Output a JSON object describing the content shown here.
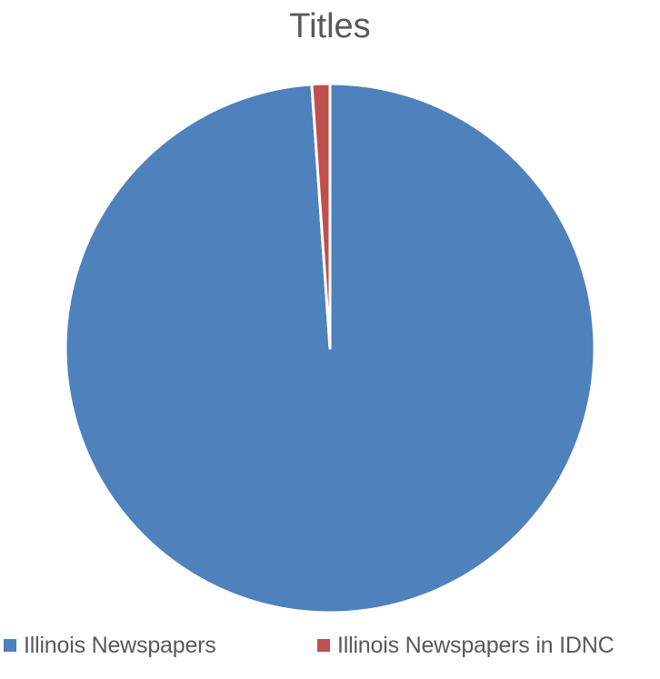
{
  "chart_data": {
    "type": "pie",
    "title": "Titles",
    "categories": [
      "Illinois Newspapers",
      "Illinois Newspapers in IDNC"
    ],
    "values": [
      98.9,
      1.1
    ],
    "colors": [
      "#4F81BD",
      "#C0504D"
    ],
    "legend_position": "bottom"
  }
}
